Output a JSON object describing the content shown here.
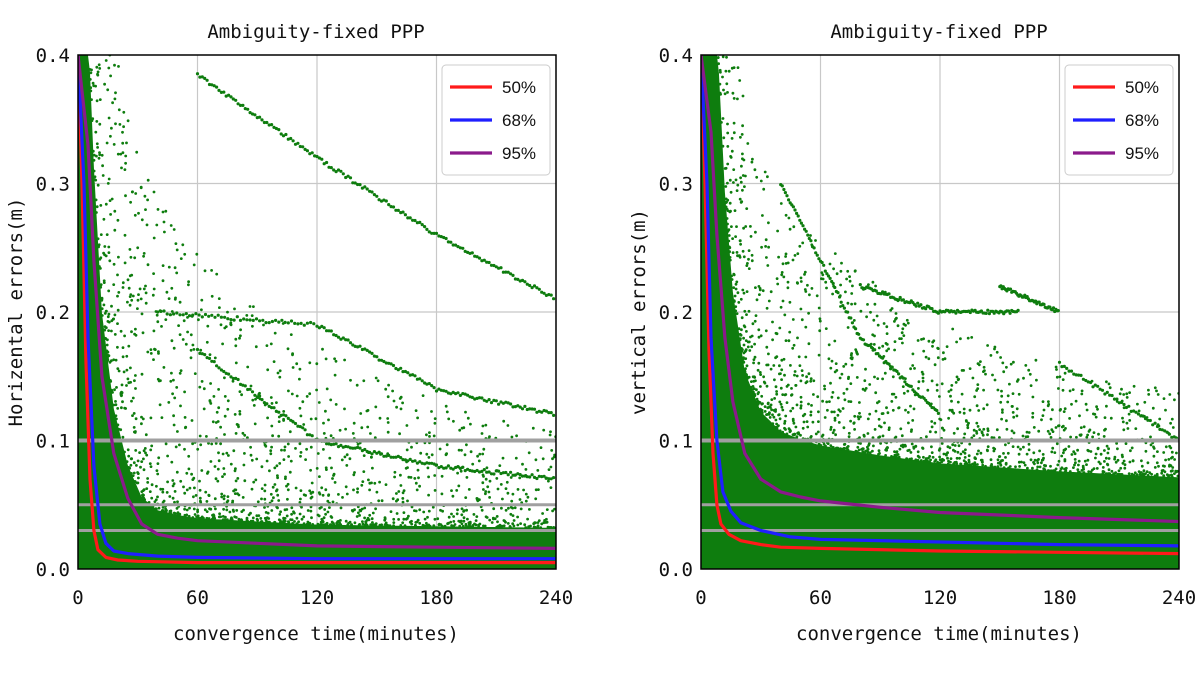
{
  "chart_data": [
    {
      "type": "scatter",
      "title": "Ambiguity-fixed PPP",
      "xlabel": "convergence time(minutes)",
      "ylabel": "Horizental errors(m)",
      "xlim": [
        0,
        240
      ],
      "ylim": [
        0,
        0.4
      ],
      "xticks": [
        "0",
        "60",
        "120",
        "180",
        "240"
      ],
      "yticks": [
        "0.0",
        "0.1",
        "0.2",
        "0.3",
        "0.4"
      ],
      "grid": true,
      "legend_position": "top-right",
      "reference_lines": [
        0.1,
        0.05,
        0.03
      ],
      "colors": {
        "scatter": "#0e7d0e",
        "50%": "#ff1a1a",
        "68%": "#1f1fff",
        "95%": "#8b1a8b",
        "ref": "#a0a0a0"
      },
      "scatter_color": "#0e7d0e",
      "series": [
        {
          "name": "50%",
          "color": "#ff1a1a",
          "x": [
            0,
            2,
            4,
            6,
            8,
            10,
            14,
            20,
            30,
            60,
            120,
            180,
            240
          ],
          "y": [
            0.4,
            0.3,
            0.16,
            0.07,
            0.03,
            0.015,
            0.009,
            0.007,
            0.006,
            0.005,
            0.005,
            0.005,
            0.005
          ]
        },
        {
          "name": "68%",
          "color": "#1f1fff",
          "x": [
            0,
            3,
            5,
            8,
            11,
            14,
            18,
            25,
            40,
            60,
            120,
            180,
            240
          ],
          "y": [
            0.4,
            0.3,
            0.18,
            0.08,
            0.035,
            0.02,
            0.014,
            0.012,
            0.01,
            0.009,
            0.008,
            0.008,
            0.008
          ]
        },
        {
          "name": "95%",
          "color": "#8b1a8b",
          "x": [
            0,
            5,
            8,
            12,
            18,
            25,
            32,
            40,
            50,
            60,
            90,
            120,
            180,
            240
          ],
          "y": [
            0.4,
            0.33,
            0.24,
            0.15,
            0.09,
            0.055,
            0.035,
            0.027,
            0.024,
            0.022,
            0.02,
            0.018,
            0.017,
            0.016
          ]
        }
      ]
    },
    {
      "type": "scatter",
      "title": "Ambiguity-fixed PPP",
      "xlabel": "convergence time(minutes)",
      "ylabel": "vertical errors(m)",
      "xlim": [
        0,
        240
      ],
      "ylim": [
        0,
        0.4
      ],
      "xticks": [
        "0",
        "60",
        "120",
        "180",
        "240"
      ],
      "yticks": [
        "0.0",
        "0.1",
        "0.2",
        "0.3",
        "0.4"
      ],
      "grid": true,
      "legend_position": "top-right",
      "reference_lines": [
        0.1,
        0.05,
        0.03
      ],
      "colors": {
        "scatter": "#0e7d0e",
        "50%": "#ff1a1a",
        "68%": "#1f1fff",
        "95%": "#8b1a8b",
        "ref": "#a0a0a0"
      },
      "scatter_color": "#0e7d0e",
      "series": [
        {
          "name": "50%",
          "color": "#ff1a1a",
          "x": [
            0,
            2,
            4,
            6,
            8,
            10,
            14,
            20,
            30,
            40,
            60,
            120,
            180,
            240
          ],
          "y": [
            0.4,
            0.3,
            0.17,
            0.09,
            0.05,
            0.035,
            0.027,
            0.022,
            0.019,
            0.017,
            0.016,
            0.014,
            0.013,
            0.012
          ]
        },
        {
          "name": "68%",
          "color": "#1f1fff",
          "x": [
            0,
            3,
            5,
            8,
            11,
            15,
            20,
            30,
            45,
            60,
            120,
            180,
            240
          ],
          "y": [
            0.4,
            0.3,
            0.18,
            0.1,
            0.06,
            0.045,
            0.036,
            0.03,
            0.025,
            0.023,
            0.021,
            0.019,
            0.018
          ]
        },
        {
          "name": "95%",
          "color": "#8b1a8b",
          "x": [
            0,
            5,
            8,
            12,
            16,
            22,
            30,
            40,
            50,
            60,
            90,
            120,
            180,
            240
          ],
          "y": [
            0.4,
            0.34,
            0.26,
            0.18,
            0.13,
            0.09,
            0.07,
            0.06,
            0.056,
            0.053,
            0.048,
            0.044,
            0.04,
            0.037
          ]
        }
      ]
    }
  ]
}
